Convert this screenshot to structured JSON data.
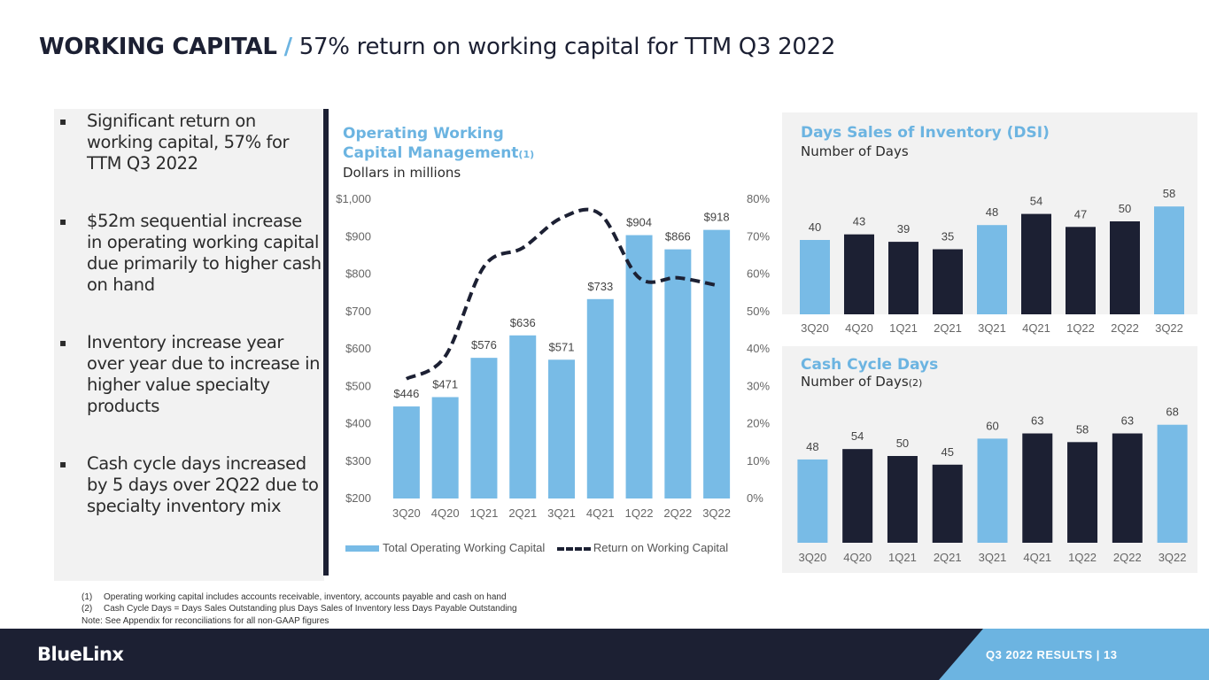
{
  "header": {
    "title_main": "WORKING CAPITAL",
    "title_sep": "/",
    "title_sub": "57% return on working capital for TTM Q3 2022"
  },
  "bullets": [
    "Significant return on working capital, 57% for TTM Q3 2022",
    "$52m sequential increase in operating working capital due primarily to higher cash on hand",
    "Inventory increase year over year due to increase in higher value specialty products",
    "Cash cycle days increased by 5 days over 2Q22 due to specialty inventory mix"
  ],
  "bullet_glyph": "▪",
  "main_chart_header": {
    "title": "Operating Working Capital Management",
    "title_note": "(1)",
    "subtitle": "Dollars in millions"
  },
  "legend": {
    "bar_label": "Total Operating Working Capital",
    "line_label": "Return on Working Capital"
  },
  "dsi_header": {
    "title": "Days Sales of Inventory (DSI)",
    "subtitle": "Number of Days"
  },
  "ccd_header": {
    "title": "Cash Cycle Days",
    "subtitle": "Number of Days",
    "subtitle_note": "(2)"
  },
  "chart_data": [
    {
      "type": "bar",
      "title": "Operating Working Capital Management",
      "subtitle": "Dollars in millions",
      "categories": [
        "3Q20",
        "4Q20",
        "1Q21",
        "2Q21",
        "3Q21",
        "4Q21",
        "1Q22",
        "2Q22",
        "3Q22"
      ],
      "series": [
        {
          "name": "Total Operating Working Capital",
          "type": "bar",
          "axis": "left",
          "values": [
            446,
            471,
            576,
            636,
            571,
            733,
            904,
            866,
            918
          ],
          "labels": [
            "$446",
            "$471",
            "$576",
            "$636",
            "$571",
            "$733",
            "$904",
            "$866",
            "$918"
          ]
        },
        {
          "name": "Return on Working Capital",
          "type": "line",
          "style": "dashed",
          "axis": "right",
          "values": [
            32,
            38,
            62,
            67,
            75,
            76,
            59,
            59,
            57
          ]
        }
      ],
      "ylim": [
        200,
        1000
      ],
      "yticks": [
        "$200",
        "$300",
        "$400",
        "$500",
        "$600",
        "$700",
        "$800",
        "$900",
        "$1,000"
      ],
      "y2lim": [
        0,
        80
      ],
      "y2ticks": [
        "0%",
        "10%",
        "20%",
        "30%",
        "40%",
        "50%",
        "60%",
        "70%",
        "80%"
      ],
      "legend_position": "bottom",
      "grid": false,
      "colors": {
        "bar": "#78bbe6",
        "line": "#1c2033"
      }
    },
    {
      "type": "bar",
      "title": "Days Sales of Inventory (DSI)",
      "subtitle": "Number of Days",
      "categories": [
        "3Q20",
        "4Q20",
        "1Q21",
        "2Q21",
        "3Q21",
        "4Q21",
        "1Q22",
        "2Q22",
        "3Q22"
      ],
      "values": [
        40,
        43,
        39,
        35,
        48,
        54,
        47,
        50,
        58
      ],
      "bar_colors": [
        "#78bbe6",
        "#1c2033",
        "#1c2033",
        "#1c2033",
        "#78bbe6",
        "#1c2033",
        "#1c2033",
        "#1c2033",
        "#78bbe6"
      ],
      "grid": false
    },
    {
      "type": "bar",
      "title": "Cash Cycle Days",
      "subtitle": "Number of Days",
      "categories": [
        "3Q20",
        "4Q20",
        "1Q21",
        "2Q21",
        "3Q21",
        "4Q21",
        "1Q22",
        "2Q22",
        "3Q22"
      ],
      "values": [
        48,
        54,
        50,
        45,
        60,
        63,
        58,
        63,
        68
      ],
      "bar_colors": [
        "#78bbe6",
        "#1c2033",
        "#1c2033",
        "#1c2033",
        "#78bbe6",
        "#1c2033",
        "#1c2033",
        "#1c2033",
        "#78bbe6"
      ],
      "grid": false
    }
  ],
  "footnotes": [
    {
      "num": "(1)",
      "text": "Operating working capital includes accounts receivable, inventory, accounts payable and cash on hand"
    },
    {
      "num": "(2)",
      "text": "Cash Cycle Days = Days Sales Outstanding plus Days Sales of Inventory less Days Payable Outstanding"
    }
  ],
  "note": "Note:  See Appendix for reconciliations for all non-GAAP figures",
  "footer": {
    "logo": "BlueLinx",
    "badge": "Q3  2022  RESULTS    |    13"
  }
}
